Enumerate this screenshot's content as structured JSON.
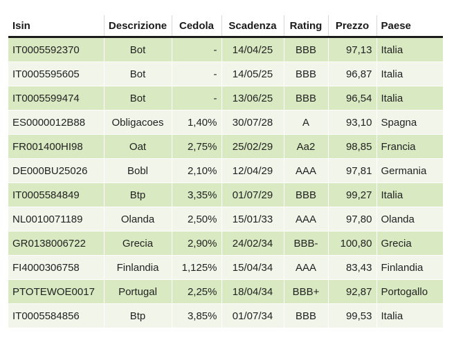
{
  "headers": [
    "Isin",
    "Descrizione",
    "Cedola",
    "Scadenza",
    "Rating",
    "Prezzo",
    "Paese"
  ],
  "rows": [
    [
      "IT0005592370",
      "Bot",
      "-",
      "14/04/25",
      "BBB",
      "97,13",
      "Italia"
    ],
    [
      "IT0005595605",
      "Bot",
      "-",
      "14/05/25",
      "BBB",
      "96,87",
      "Italia"
    ],
    [
      "IT0005599474",
      "Bot",
      "-",
      "13/06/25",
      "BBB",
      "96,54",
      "Italia"
    ],
    [
      "ES0000012B88",
      "Obligacoes",
      "1,40%",
      "30/07/28",
      "A",
      "93,10",
      "Spagna"
    ],
    [
      "FR001400HI98",
      "Oat",
      "2,75%",
      "25/02/29",
      "Aa2",
      "98,85",
      "Francia"
    ],
    [
      "DE000BU25026",
      "Bobl",
      "2,10%",
      "12/04/29",
      "AAA",
      "97,81",
      "Germania"
    ],
    [
      "IT0005584849",
      "Btp",
      "3,35%",
      "01/07/29",
      "BBB",
      "99,27",
      "Italia"
    ],
    [
      "NL0010071189",
      "Olanda",
      "2,50%",
      "15/01/33",
      "AAA",
      "97,80",
      "Olanda"
    ],
    [
      "GR0138006722",
      "Grecia",
      "2,90%",
      "24/02/34",
      "BBB-",
      "100,80",
      "Grecia"
    ],
    [
      "FI4000306758",
      "Finlandia",
      "1,125%",
      "15/04/34",
      "AAA",
      "83,43",
      "Finlandia"
    ],
    [
      "PTOTEWOE0017",
      "Portugal",
      "2,25%",
      "18/04/34",
      "BBB+",
      "92,87",
      "Portogallo"
    ],
    [
      "IT0005584856",
      "Btp",
      "3,85%",
      "01/07/34",
      "BBB",
      "99,53",
      "Italia"
    ]
  ],
  "colors": {
    "row_dark": "#d9e9c1",
    "row_light": "#f1f5ea",
    "header_rule": "#1a1a1a"
  }
}
